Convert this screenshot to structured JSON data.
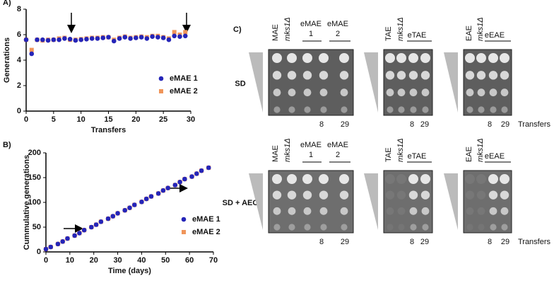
{
  "chart_data": [
    {
      "type": "scatter",
      "panel_label": "A)",
      "xlabel": "Transfers",
      "ylabel": "Generations",
      "x": [
        0,
        1,
        2,
        3,
        4,
        5,
        6,
        7,
        8,
        9,
        10,
        11,
        12,
        13,
        14,
        15,
        16,
        17,
        18,
        19,
        20,
        21,
        22,
        23,
        24,
        25,
        26,
        27,
        28,
        29
      ],
      "series": [
        {
          "name": "eMAE 2",
          "color": "#f0955a",
          "marker": "square",
          "values": [
            5.6,
            4.8,
            5.6,
            5.55,
            5.6,
            5.6,
            5.7,
            5.75,
            5.6,
            5.6,
            5.65,
            5.7,
            5.75,
            5.75,
            5.8,
            5.8,
            5.6,
            5.75,
            5.85,
            5.75,
            5.8,
            5.85,
            5.8,
            5.9,
            5.9,
            5.8,
            5.7,
            6.2,
            6.0,
            6.2
          ]
        },
        {
          "name": "eMAE 1",
          "color": "#2525b8",
          "marker": "circle",
          "values": [
            5.6,
            4.5,
            5.6,
            5.6,
            5.55,
            5.6,
            5.6,
            5.7,
            5.65,
            5.55,
            5.6,
            5.65,
            5.7,
            5.7,
            5.75,
            5.8,
            5.5,
            5.7,
            5.8,
            5.7,
            5.75,
            5.8,
            5.7,
            5.85,
            5.8,
            5.75,
            5.6,
            5.9,
            5.85,
            5.9
          ]
        }
      ],
      "xlim": [
        0,
        30
      ],
      "xticks": [
        0,
        5,
        10,
        15,
        20,
        25,
        30
      ],
      "ylim": [
        0,
        8
      ],
      "yticks": [
        0,
        2,
        4,
        6,
        8
      ],
      "legend": "lower right"
    },
    {
      "type": "scatter",
      "panel_label": "B)",
      "xlabel": "Time (days)",
      "ylabel": "Cummulative generations",
      "x": [
        0,
        2,
        5,
        7,
        9,
        12,
        14,
        16,
        19,
        21,
        23,
        26,
        28,
        30,
        33,
        35,
        37,
        40,
        42,
        44,
        47,
        49,
        51,
        54,
        56,
        58,
        61,
        63,
        65,
        68
      ],
      "series": [
        {
          "name": "eMAE 2",
          "color": "#f0955a",
          "marker": "square",
          "values": [
            5.6,
            10,
            16,
            21,
            27,
            33,
            38,
            44,
            50,
            55,
            61,
            67,
            72,
            78,
            84,
            89,
            95,
            101,
            107,
            112,
            118,
            124,
            129,
            135,
            141,
            147,
            152,
            158,
            164,
            170
          ]
        },
        {
          "name": "eMAE 1",
          "color": "#2525b8",
          "marker": "circle",
          "values": [
            5.6,
            10,
            16,
            21,
            27,
            33,
            38,
            44,
            50,
            55,
            61,
            67,
            72,
            78,
            84,
            89,
            95,
            101,
            107,
            112,
            118,
            124,
            129,
            135,
            141,
            147,
            152,
            158,
            164,
            170
          ]
        }
      ],
      "xlim": [
        0,
        70
      ],
      "xticks": [
        0,
        10,
        20,
        30,
        40,
        50,
        60,
        70
      ],
      "ylim": [
        0,
        200
      ],
      "yticks": [
        0,
        50,
        100,
        150,
        200
      ],
      "legend": "lower right"
    }
  ],
  "plates": {
    "panel_label": "C)",
    "conditions": [
      "SD",
      "SD + AEC"
    ],
    "groups": [
      {
        "strains": [
          "MAE",
          "mks1Δ"
        ],
        "evolved": [
          {
            "name": "eMAE",
            "number": "1"
          },
          {
            "name": "eMAE",
            "number": "2"
          }
        ]
      },
      {
        "strains": [
          "TAE",
          "mks1Δ"
        ],
        "evolved": [
          {
            "name": "eTAE"
          }
        ]
      },
      {
        "strains": [
          "EAE",
          "mks1Δ"
        ],
        "evolved": [
          {
            "name": "eEAE"
          }
        ]
      }
    ],
    "transfer_labels": [
      "8",
      "29"
    ],
    "transfers_title": "Transfers"
  }
}
